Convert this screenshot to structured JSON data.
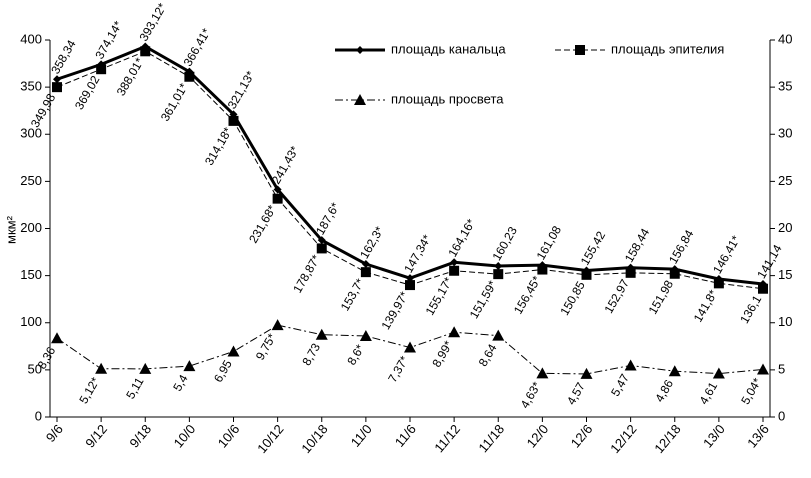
{
  "chart_data": {
    "type": "line",
    "y_label": "мкм²",
    "categories": [
      "9/6",
      "9/12",
      "9/18",
      "10/0",
      "10/6",
      "10/12",
      "10/18",
      "11/0",
      "11/6",
      "11/12",
      "11/18",
      "12/0",
      "12/6",
      "12/12",
      "12/18",
      "13/0",
      "13/6"
    ],
    "ylim": [
      0,
      400
    ],
    "yticks": [
      0,
      50,
      100,
      150,
      200,
      250,
      300,
      350,
      400
    ],
    "y2lim": [
      0,
      40
    ],
    "y2ticks": [
      0,
      5,
      10,
      15,
      20,
      25,
      30,
      35,
      40
    ],
    "series": [
      {
        "name": "площадь канальца",
        "color": "#000000",
        "style": "solid",
        "marker": "diamond",
        "values": [
          358.34,
          374.14,
          393.12,
          366.41,
          321.13,
          241.43,
          187.6,
          162.3,
          147.34,
          164.16,
          160.23,
          161.08,
          155.42,
          158.44,
          156.84,
          146.41,
          141.14
        ],
        "value_labels": [
          "358,34",
          "374,14*",
          "393,12*",
          "366,41*",
          "321,13*",
          "241,43*",
          "187,6*",
          "162,3*",
          "147,34*",
          "164,16*",
          "160,23",
          "161,08",
          "155,42",
          "158,44",
          "156,84",
          "146,41*",
          "141,14"
        ]
      },
      {
        "name": "площадь эпителия",
        "color": "#000000",
        "style": "dashed",
        "marker": "square",
        "values": [
          349.98,
          369.02,
          388.01,
          361.01,
          314.18,
          231.68,
          178.87,
          153.7,
          139.97,
          155.17,
          151.59,
          156.45,
          150.85,
          152.97,
          151.98,
          141.8,
          136.1
        ],
        "value_labels": [
          "349,98",
          "369,02",
          "388,01*",
          "361,01*",
          "314,18*",
          "231,68*",
          "178,87*",
          "153,7*",
          "139,97*",
          "155,17*",
          "151,59*",
          "156,45*",
          "150,85",
          "152,97",
          "151,98",
          "141,8*",
          "136,1"
        ]
      },
      {
        "name": "площадь просвета",
        "color": "#000000",
        "style": "dashdot",
        "marker": "triangle",
        "axis": "y2",
        "values": [
          8.36,
          5.12,
          5.11,
          5.4,
          6.95,
          9.75,
          8.73,
          8.6,
          7.37,
          8.99,
          8.64,
          4.63,
          4.57,
          5.47,
          4.86,
          4.61,
          5.04
        ],
        "value_labels": [
          "8,36",
          "5,12*",
          "5,11",
          "5,4",
          "6,95",
          "9,75*",
          "8,73",
          "8,6*",
          "7,37*",
          "8,99*",
          "8,64",
          "4,63*",
          "4,57",
          "5,47",
          "4,86",
          "4,61",
          "5,04*"
        ]
      }
    ]
  }
}
